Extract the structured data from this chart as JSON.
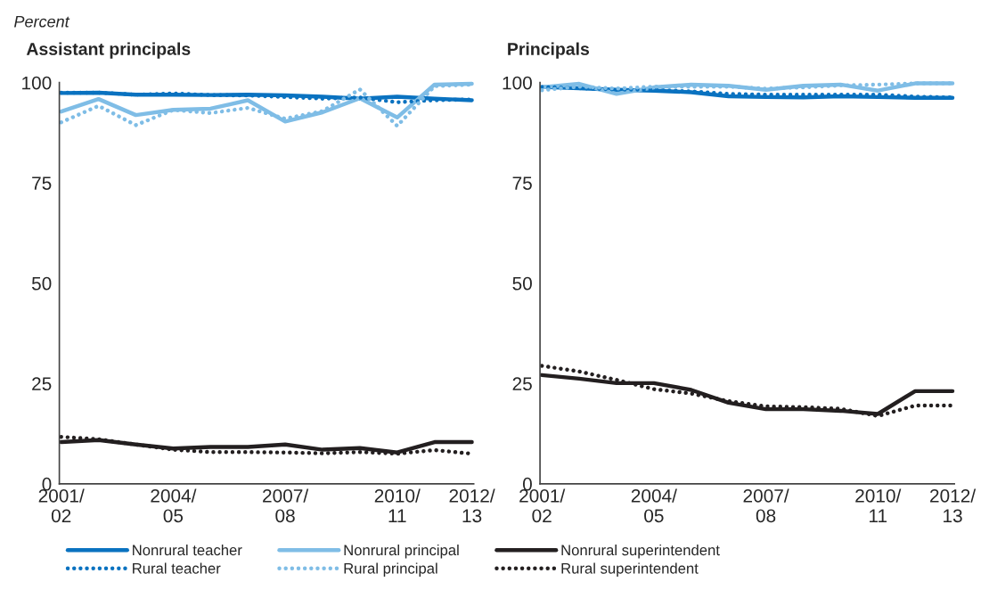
{
  "chart_data": [
    {
      "type": "line",
      "title": "Assistant principals",
      "ylabel": "Percent",
      "categories": [
        "2001/\n02",
        null,
        null,
        "2004/\n05",
        null,
        null,
        "2007/\n08",
        null,
        null,
        "2010/\n11",
        null,
        "2012/\n13"
      ],
      "ylim": [
        0,
        100
      ],
      "yticks": [
        0,
        25,
        50,
        75,
        100
      ],
      "grid": false,
      "legend": "bottom",
      "series": [
        {
          "name": "Nonrural teacher",
          "color": "#0a72c0",
          "line_style": "solid",
          "values": [
            97.4,
            97.5,
            97.0,
            97.0,
            96.9,
            97.0,
            96.8,
            96.5,
            96.0,
            96.5,
            96.0,
            95.6
          ]
        },
        {
          "name": "Nonrural principal",
          "color": "#7fbde6",
          "line_style": "solid",
          "values": [
            92.8,
            95.9,
            91.9,
            93.2,
            93.5,
            95.6,
            90.3,
            92.6,
            96.1,
            91.3,
            99.5,
            99.7
          ]
        },
        {
          "name": "Nonrural superintendent",
          "color": "#231f20",
          "line_style": "solid",
          "values": [
            10.4,
            10.9,
            9.8,
            8.8,
            9.2,
            9.2,
            9.8,
            8.5,
            8.9,
            7.8,
            10.4,
            10.4
          ]
        },
        {
          "name": "Rural teacher",
          "color": "#0a72c0",
          "line_style": "dotted",
          "values": [
            97.5,
            97.5,
            97.0,
            97.3,
            96.9,
            96.8,
            96.4,
            96.0,
            96.3,
            95.1,
            95.6,
            95.8
          ]
        },
        {
          "name": "Rural principal",
          "color": "#7fbde6",
          "line_style": "dotted",
          "values": [
            90.1,
            94.2,
            89.4,
            93.2,
            92.4,
            93.7,
            91.0,
            92.9,
            98.3,
            89.2,
            99.1,
            99.5
          ]
        },
        {
          "name": "Rural superintendent",
          "color": "#231f20",
          "line_style": "dotted",
          "values": [
            11.7,
            11.1,
            9.8,
            8.5,
            7.9,
            7.9,
            7.8,
            7.6,
            7.9,
            7.5,
            8.4,
            7.5
          ]
        }
      ]
    },
    {
      "type": "line",
      "title": "Principals",
      "categories": [
        "2001/\n02",
        null,
        null,
        "2004/\n05",
        null,
        null,
        "2007/\n08",
        null,
        null,
        "2010/\n11",
        null,
        "2012/\n13"
      ],
      "ylim": [
        0,
        100
      ],
      "yticks": [
        0,
        25,
        50,
        75,
        100
      ],
      "grid": false,
      "series": [
        {
          "color": "#0a72c0",
          "line_style": "solid",
          "values": [
            98.9,
            98.6,
            98.2,
            98.0,
            97.6,
            96.6,
            96.4,
            96.3,
            96.6,
            96.4,
            96.2,
            96.2
          ]
        },
        {
          "color": "#7fbde6",
          "line_style": "solid",
          "values": [
            98.8,
            99.7,
            97.2,
            98.8,
            99.5,
            99.2,
            98.2,
            99.2,
            99.5,
            98.0,
            99.8,
            99.8
          ]
        },
        {
          "color": "#231f20",
          "line_style": "solid",
          "values": [
            27.1,
            26.2,
            25.1,
            25.1,
            23.4,
            20.2,
            18.6,
            18.6,
            18.2,
            17.4,
            23.1,
            23.1
          ]
        },
        {
          "color": "#0a72c0",
          "line_style": "dotted",
          "values": [
            98.9,
            98.6,
            98.3,
            98.2,
            97.8,
            97.2,
            97.0,
            97.0,
            97.0,
            97.0,
            96.5,
            96.3
          ]
        },
        {
          "color": "#7fbde6",
          "line_style": "dotted",
          "values": [
            98.1,
            99.0,
            98.5,
            99.0,
            99.0,
            99.0,
            98.5,
            98.8,
            99.3,
            99.5,
            99.8,
            99.8
          ]
        },
        {
          "color": "#231f20",
          "line_style": "dotted",
          "values": [
            29.4,
            28.0,
            25.9,
            23.6,
            22.5,
            20.6,
            19.3,
            19.1,
            18.7,
            16.9,
            19.5,
            19.5
          ]
        }
      ]
    }
  ]
}
